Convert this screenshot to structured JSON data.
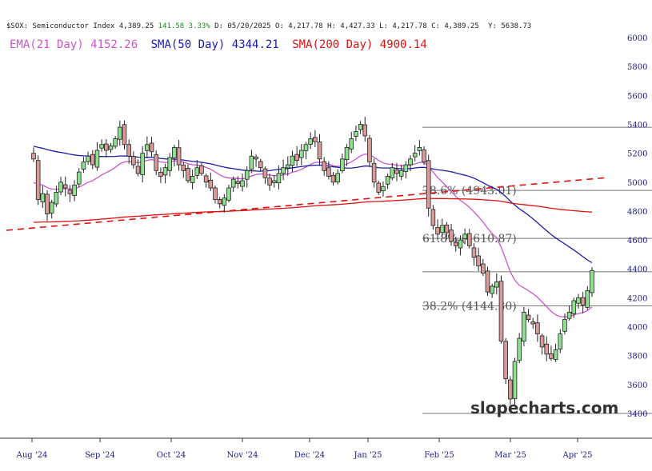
{
  "chart_data": {
    "type": "candlestick",
    "header": {
      "symbol": "$SOX: Semiconductor Index",
      "last": "4,389.25",
      "change": "141.58",
      "change_pct": "3.33%",
      "date": "D: 05/20/2025",
      "open": "O: 4,217.78",
      "high": "H: 4,427.33",
      "low": "L: 4,217.78",
      "close": "C: 4,389.25",
      "extra": "Y:   5638.73"
    },
    "legend": [
      {
        "label": "EMA(21 Day) 4152.26",
        "color": "#cc55cc"
      },
      {
        "label": "SMA(50 Day) 4344.21",
        "color": "#1a1aaa"
      },
      {
        "label": "SMA(200 Day) 4900.14",
        "color": "#dd1111"
      }
    ],
    "ylim": [
      3350,
      6050
    ],
    "y_ticks": [
      "6000",
      "5800",
      "5600",
      "5400",
      "5200",
      "5000",
      "4800",
      "4600",
      "4400",
      "4200",
      "4000",
      "3800",
      "3600",
      "3400"
    ],
    "x_labels": [
      "Aug '24",
      "Sep '24",
      "Oct '24",
      "Nov '24",
      "Dec '24",
      "Jan '25",
      "Feb '25",
      "Mar '25",
      "Apr '25"
    ],
    "fib_levels": [
      {
        "level": 5380,
        "label": ""
      },
      {
        "level": 4943.01,
        "label": "78.6% (4943.01)"
      },
      {
        "level": 4610.87,
        "label": "61.8% (4610.87)"
      },
      {
        "level": 4380,
        "label": ""
      },
      {
        "level": 4144.3,
        "label": "38.2% (4144.30)"
      },
      {
        "level": 3400,
        "label": ""
      }
    ],
    "trendline": {
      "color": "#dd1111",
      "style": "dashed"
    },
    "closes": [
      5160,
      4880,
      4920,
      4780,
      4860,
      4930,
      5000,
      4960,
      4920,
      4980,
      5070,
      5140,
      5180,
      5120,
      5220,
      5260,
      5220,
      5250,
      5300,
      5380,
      5260,
      5180,
      5120,
      5060,
      5200,
      5260,
      5210,
      5080,
      5040,
      5100,
      5170,
      5240,
      5120,
      5080,
      5010,
      5040,
      5100,
      5060,
      5000,
      4960,
      4880,
      4850,
      4890,
      4960,
      5020,
      4990,
      5010,
      5080,
      5180,
      5160,
      5100,
      5030,
      4980,
      5010,
      5060,
      5100,
      5120,
      5180,
      5150,
      5220,
      5260,
      5300,
      5280,
      5160,
      5080,
      5040,
      5000,
      5060,
      5160,
      5240,
      5300,
      5350,
      5400,
      5320,
      5140,
      5000,
      4930,
      4970,
      5040,
      5100,
      5060,
      5080,
      5120,
      5160,
      5200,
      5240,
      5140,
      4820,
      4700,
      4640,
      4700,
      4650,
      4590,
      4560,
      4600,
      4640,
      4560,
      4480,
      4420,
      4370,
      4240,
      4280,
      4310,
      3900,
      3640,
      3500,
      3760,
      3920,
      4100,
      4050,
      4020,
      3950,
      3860,
      3810,
      3780,
      3840,
      3950,
      4050,
      4100,
      4180,
      4200,
      4150,
      4250,
      4389
    ],
    "ema21_anchor": [
      4980,
      4150
    ],
    "sma50_anchor": [
      5250,
      4344
    ],
    "sma200_anchor": [
      4720,
      4900
    ],
    "watermark": "slopecharts.com"
  }
}
